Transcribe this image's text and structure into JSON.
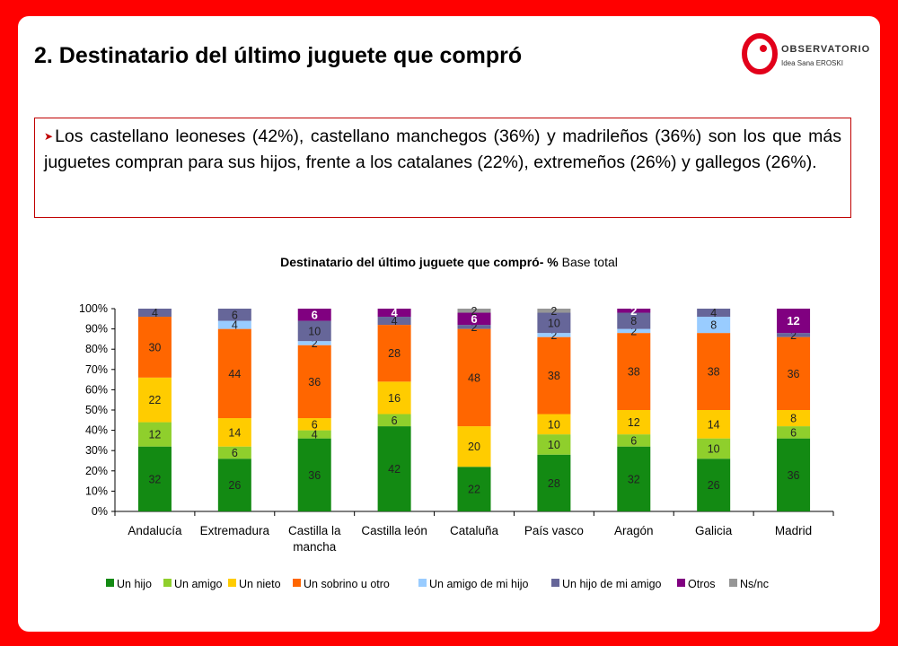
{
  "slide": {
    "title": "2. Destinatario del último juguete que compró",
    "logo": {
      "name": "OBSERVATORIO",
      "sub": "Idea Sana EROSKI"
    },
    "bullet_text": "Los castellano leoneses (42%), castellano manchegos (36%) y madrileños (36%) son los que más juguetes compran para sus hijos, frente a los catalanes (22%), extremeños (26%) y gallegos (26%)."
  },
  "chart_data": {
    "type": "bar",
    "stacked": true,
    "title_bold": "Destinatario del último juguete que compró- %",
    "title_normal": "Base total",
    "yticks": [
      "0%",
      "10%",
      "20%",
      "30%",
      "40%",
      "50%",
      "60%",
      "70%",
      "80%",
      "90%",
      "100%"
    ],
    "ylim": [
      0,
      100
    ],
    "categories": [
      "Andalucía",
      "Extremadura",
      "Castilla la\nmancha",
      "Castilla león",
      "Cataluña",
      "País vasco",
      "Aragón",
      "Galicia",
      "Madrid"
    ],
    "series": [
      {
        "name": "Un hijo",
        "color": "#138a13",
        "values": [
          32,
          26,
          36,
          42,
          22,
          28,
          32,
          26,
          36
        ]
      },
      {
        "name": "Un amigo",
        "color": "#8fcf2c",
        "values": [
          12,
          6,
          4,
          6,
          0,
          10,
          6,
          10,
          6
        ]
      },
      {
        "name": "Un nieto",
        "color": "#ffcc00",
        "values": [
          22,
          14,
          6,
          16,
          20,
          10,
          12,
          14,
          8
        ]
      },
      {
        "name": "Un sobrino u otro",
        "color": "#ff6600",
        "values": [
          30,
          44,
          36,
          28,
          48,
          38,
          38,
          38,
          36
        ]
      },
      {
        "name": "Un amigo de mi hijo",
        "color": "#99ccff",
        "values": [
          0,
          4,
          2,
          0,
          0,
          2,
          2,
          8,
          0
        ]
      },
      {
        "name": "Un hijo de mi amigo",
        "color": "#666699",
        "values": [
          4,
          6,
          10,
          4,
          2,
          10,
          8,
          4,
          2
        ]
      },
      {
        "name": "Otros",
        "color": "#800080",
        "values": [
          0,
          0,
          6,
          4,
          6,
          0,
          2,
          0,
          12
        ]
      },
      {
        "name": "Ns/nc",
        "color": "#969696",
        "values": [
          0,
          0,
          0,
          0,
          2,
          2,
          0,
          0,
          0
        ]
      }
    ]
  }
}
